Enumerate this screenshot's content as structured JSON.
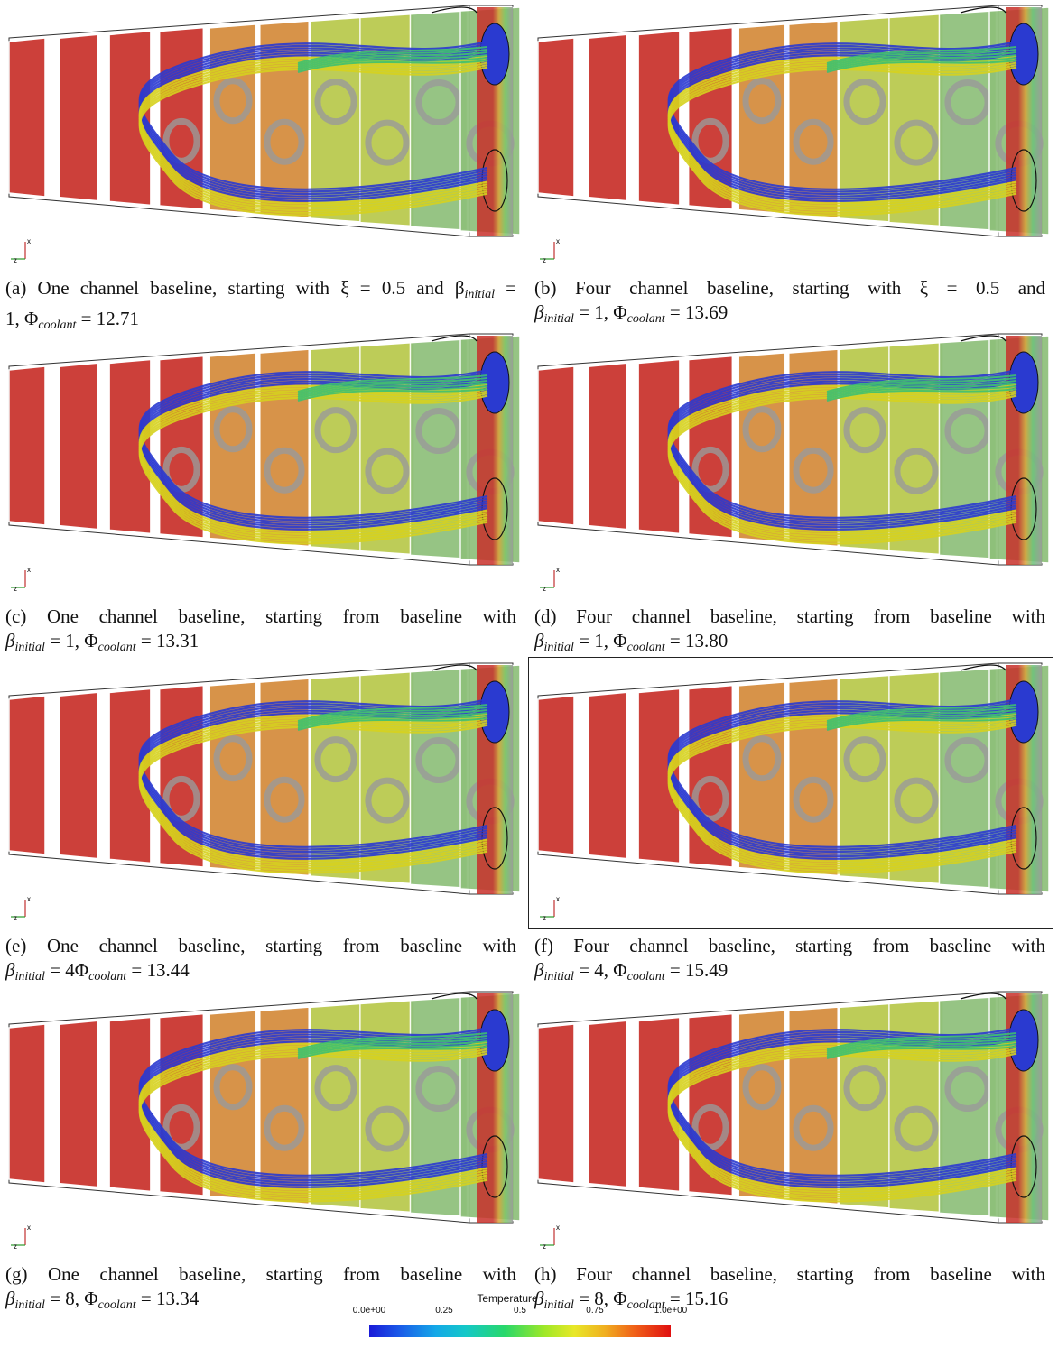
{
  "panels": [
    {
      "label": "(a)",
      "line1": "One channel baseline, starting with ξ = 0.5 and β",
      "sub1": "initial",
      "line1_end": " =",
      "line2": "1, Φ",
      "sub2": "coolant",
      "line2_end": " = 12.71",
      "framed": false,
      "channels": "one"
    },
    {
      "label": "(b)",
      "line1": "Four channel baseline, starting with ξ = 0.5 and",
      "sub1": "",
      "line1_end": "",
      "line2": "β",
      "sub2a": "initial",
      "line2_mid": " = 1, Φ",
      "sub2": "coolant",
      "line2_end": " = 13.69",
      "framed": false,
      "channels": "four"
    },
    {
      "label": "(c)",
      "line1": "One channel baseline, starting from baseline with",
      "line2": "β",
      "sub2a": "initial",
      "line2_mid": " = 1, Φ",
      "sub2": "coolant",
      "line2_end": " = 13.31",
      "framed": false,
      "channels": "one"
    },
    {
      "label": "(d)",
      "line1": "Four channel baseline, starting from baseline with",
      "line2": "β",
      "sub2a": "initial",
      "line2_mid": " = 1, Φ",
      "sub2": "coolant",
      "line2_end": " = 13.80",
      "framed": false,
      "channels": "four"
    },
    {
      "label": "(e)",
      "line1": "One channel baseline, starting from baseline with",
      "line2": "β",
      "sub2a": "initial",
      "line2_mid": " = 4Φ",
      "sub2": "coolant",
      "line2_end": " = 13.44",
      "framed": false,
      "channels": "one"
    },
    {
      "label": "(f)",
      "line1": "Four channel baseline, starting from baseline with",
      "line2": "β",
      "sub2a": "initial",
      "line2_mid": " = 4, Φ",
      "sub2": "coolant",
      "line2_end": " = 15.49",
      "framed": true,
      "channels": "four"
    },
    {
      "label": "(g)",
      "line1": "One channel baseline, starting from baseline with",
      "line2": "β",
      "sub2a": "initial",
      "line2_mid": " = 8, Φ",
      "sub2": "coolant",
      "line2_end": " = 13.34",
      "framed": false,
      "channels": "one"
    },
    {
      "label": "(h)",
      "line1": "Four channel baseline, starting from baseline with",
      "line2": "β",
      "sub2a": "initial",
      "line2_mid": " = 8, Φ",
      "sub2": "coolant",
      "line2_end": " = 15.16",
      "framed": false,
      "channels": "four"
    }
  ],
  "axes_triad": {
    "x": "x",
    "z": "z"
  },
  "colorbar": {
    "title": "Temperature",
    "ticks": [
      "0.0e+00",
      "0.25",
      "0.5",
      "0.75",
      "1.0e+00"
    ]
  },
  "colors": {
    "hot": "#c8302a",
    "warm": "#d9a43a",
    "cool": "#2a3ad0",
    "mid": "#3ec070",
    "plate_gray": "#9a9a9a",
    "stream_yellow": "#d6d21e"
  }
}
